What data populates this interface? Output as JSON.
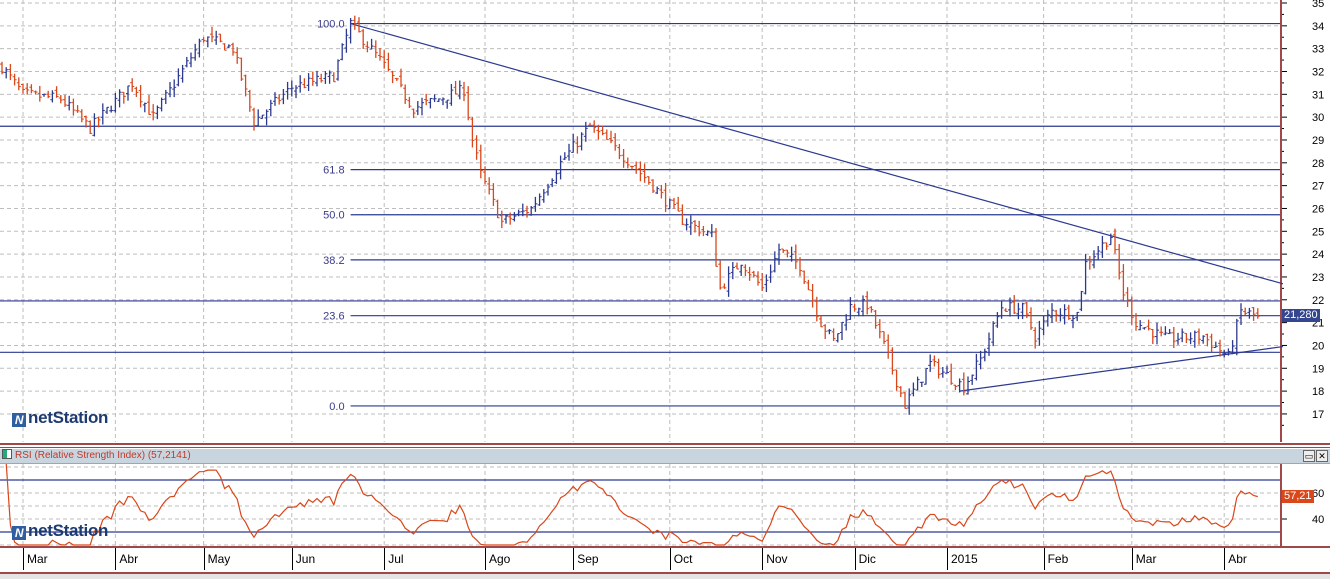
{
  "app": {
    "logo_text": "netStation"
  },
  "colors": {
    "up": "#2b3990",
    "down": "#d9471a",
    "line": "#2b3990",
    "rsi": "#d9471a",
    "border": "#a04848",
    "grid": "#bdbdbd"
  },
  "rsi_panel": {
    "title": "RSI (Relative Strength Index) (57,2141)",
    "current_value_label": "57,21",
    "restore_button": "▭",
    "close_button": "✕"
  },
  "chart_data": [
    {
      "type": "ohlc",
      "title": "",
      "current_price_label": "21,280",
      "current_price": 21.28,
      "ylim": [
        16.5,
        35.1
      ],
      "yticks": [
        17,
        18,
        19,
        20,
        21,
        22,
        23,
        24,
        25,
        26,
        27,
        28,
        29,
        30,
        31,
        32,
        33,
        34,
        35
      ],
      "months": [
        {
          "label": "Mar",
          "day": 5
        },
        {
          "label": "Abr",
          "day": 27
        },
        {
          "label": "May",
          "day": 48
        },
        {
          "label": "Jun",
          "day": 69
        },
        {
          "label": "Jul",
          "day": 91
        },
        {
          "label": "Ago",
          "day": 115
        },
        {
          "label": "Sep",
          "day": 136
        },
        {
          "label": "Oct",
          "day": 159
        },
        {
          "label": "Nov",
          "day": 181
        },
        {
          "label": "Dic",
          "day": 203
        },
        {
          "label": "2015",
          "day": 225
        },
        {
          "label": "Feb",
          "day": 248
        },
        {
          "label": "Mar",
          "day": 269
        },
        {
          "label": "Abr",
          "day": 291
        }
      ],
      "price_path": [
        [
          0,
          32.2
        ],
        [
          5,
          31
        ],
        [
          14,
          30.8
        ],
        [
          21,
          29.5
        ],
        [
          31,
          31.5
        ],
        [
          36,
          30
        ],
        [
          48,
          33.5
        ],
        [
          55,
          33
        ],
        [
          60,
          29.8
        ],
        [
          69,
          31.3
        ],
        [
          79,
          31.8
        ],
        [
          83,
          34.1
        ],
        [
          90,
          32.5
        ],
        [
          98,
          30.4
        ],
        [
          110,
          31.2
        ],
        [
          112,
          29
        ],
        [
          114,
          27.5
        ],
        [
          119,
          25.4
        ],
        [
          126,
          26
        ],
        [
          133,
          28
        ],
        [
          140,
          29.6
        ],
        [
          148,
          28.3
        ],
        [
          155,
          27
        ],
        [
          162,
          25.5
        ],
        [
          169,
          24.8
        ],
        [
          171,
          22.5
        ],
        [
          176,
          23.7
        ],
        [
          181,
          22.5
        ],
        [
          185,
          24.2
        ],
        [
          190,
          23.5
        ],
        [
          195,
          21
        ],
        [
          198,
          20.2
        ],
        [
          202,
          21.7
        ],
        [
          206,
          21.8
        ],
        [
          210,
          20
        ],
        [
          215,
          17.4
        ],
        [
          221,
          19.2
        ],
        [
          229,
          18.2
        ],
        [
          233,
          19.4
        ],
        [
          238,
          21.7
        ],
        [
          243,
          21.6
        ],
        [
          246,
          20.4
        ],
        [
          250,
          21.5
        ],
        [
          256,
          21.4
        ],
        [
          258,
          23.6
        ],
        [
          264,
          24.8
        ],
        [
          267,
          22.3
        ],
        [
          270,
          21
        ],
        [
          277,
          20.3
        ],
        [
          286,
          20.4
        ],
        [
          292,
          19.5
        ],
        [
          295,
          21.5
        ],
        [
          299,
          21.28
        ]
      ],
      "fibonacci": {
        "start_day": 83,
        "high": 34.1,
        "low": 17.35,
        "levels": [
          {
            "label": "100.0",
            "ratio": 1.0
          },
          {
            "label": "61.8",
            "ratio": 0.618
          },
          {
            "label": "50.0",
            "ratio": 0.5
          },
          {
            "label": "38.2",
            "ratio": 0.382
          },
          {
            "label": "23.6",
            "ratio": 0.236
          },
          {
            "label": "0.0",
            "ratio": 0.0
          }
        ]
      },
      "horizontal_lines": [
        29.6,
        21.95,
        19.7
      ],
      "trendlines": [
        {
          "from": [
            83,
            34.1
          ],
          "to": [
            305,
            22.7
          ]
        },
        {
          "from": [
            228,
            18.0
          ],
          "to": [
            305,
            19.95
          ]
        }
      ]
    },
    {
      "type": "line",
      "title": "RSI (Relative Strength Index)",
      "period": 14,
      "ylim": [
        20,
        83
      ],
      "yticks": [
        40,
        60
      ],
      "reference_lines": [
        70,
        30
      ],
      "last_value": 57.2141
    }
  ]
}
